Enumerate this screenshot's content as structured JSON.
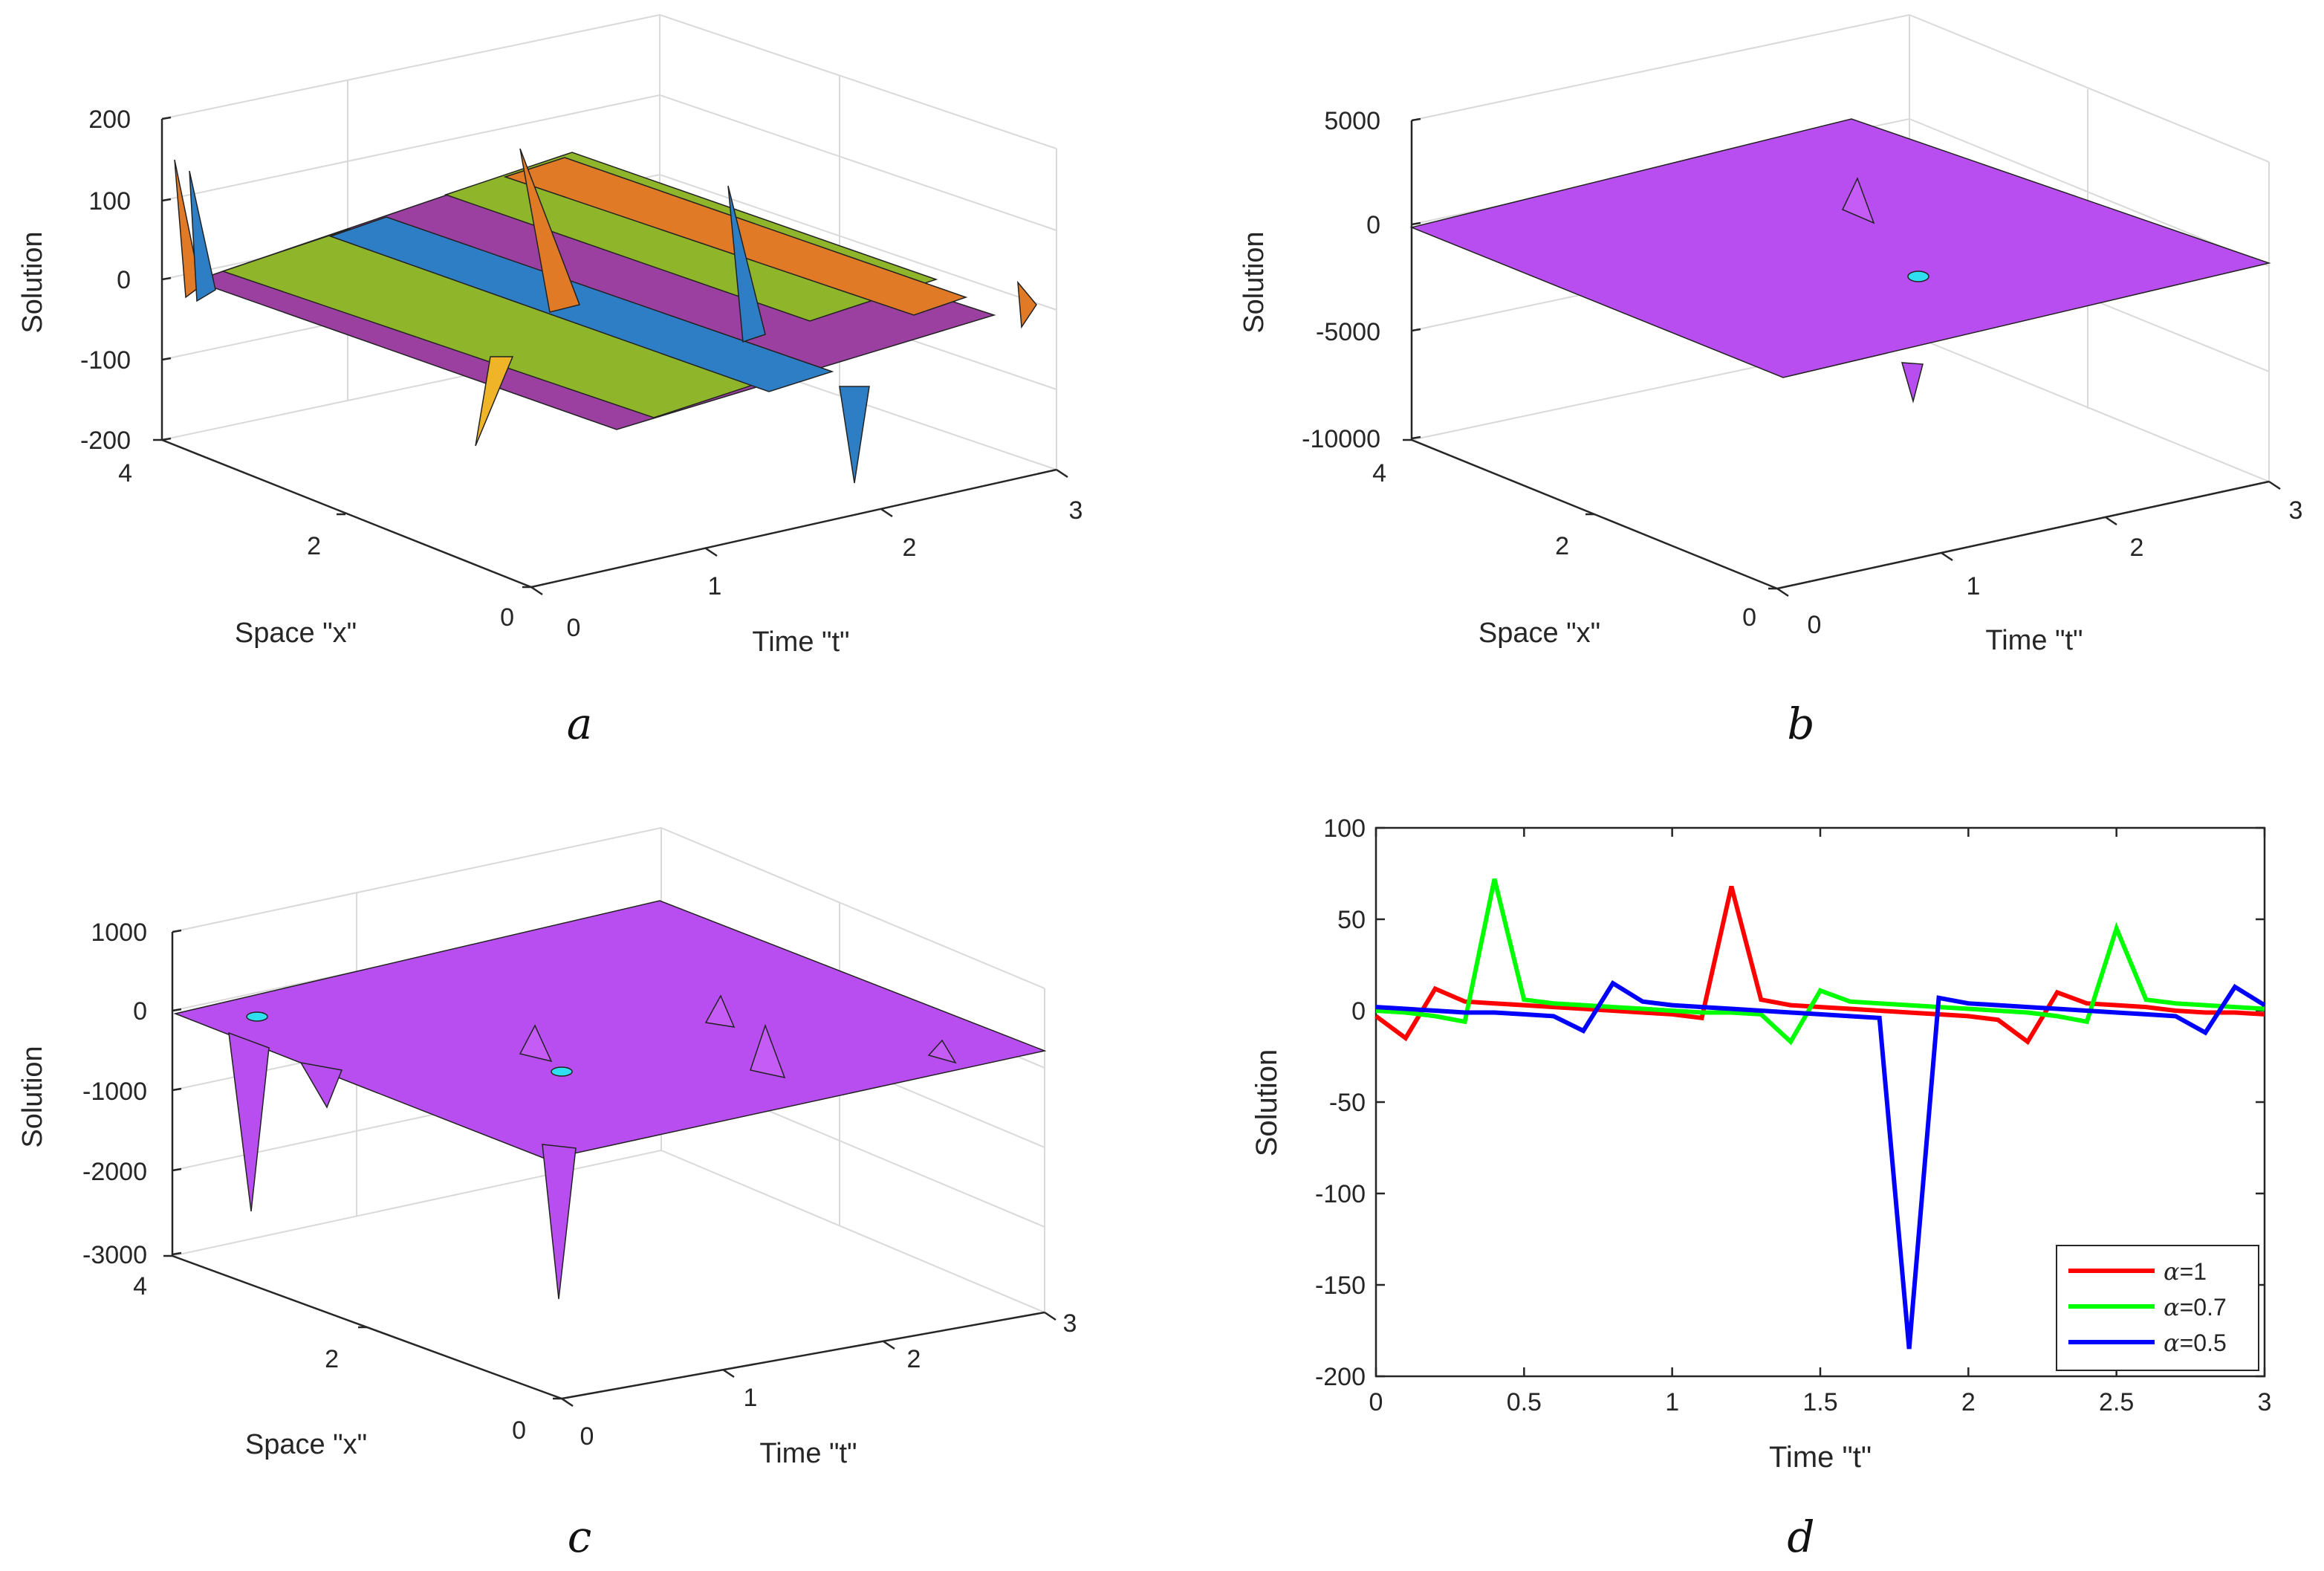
{
  "figure": {
    "panel_labels": [
      "a",
      "b",
      "c",
      "d"
    ]
  },
  "chart_data": [
    {
      "panel": "a",
      "type": "surface",
      "zlabel": "Solution",
      "xlabel": "Space \"x\"",
      "ylabel": "Time \"t\"",
      "zticks": [
        "200",
        "100",
        "0",
        "-100",
        "-200"
      ],
      "xticks": [
        "4",
        "2",
        "0"
      ],
      "yticks": [
        "0",
        "1",
        "2",
        "3"
      ],
      "zlim": [
        -200,
        200
      ],
      "xlim": [
        0,
        4
      ],
      "tlim": [
        0,
        3
      ],
      "colors": {
        "purple": "#9b3fa0",
        "green": "#8fb52a",
        "orange": "#e07a26",
        "blue": "#2d7ec4",
        "yellow": "#f0b429"
      }
    },
    {
      "panel": "b",
      "type": "surface",
      "zlabel": "Solution",
      "xlabel": "Space \"x\"",
      "ylabel": "Time \"t\"",
      "zticks": [
        "5000",
        "0",
        "-5000",
        "-10000"
      ],
      "xticks": [
        "4",
        "2",
        "0"
      ],
      "yticks": [
        "0",
        "1",
        "2",
        "3"
      ],
      "zlim": [
        -10000,
        5000
      ],
      "color": "#b84ef0"
    },
    {
      "panel": "c",
      "type": "surface",
      "zlabel": "Solution",
      "xlabel": "Space \"x\"",
      "ylabel": "Time \"t\"",
      "zticks": [
        "1000",
        "0",
        "-1000",
        "-2000",
        "-3000"
      ],
      "xticks": [
        "4",
        "2",
        "0"
      ],
      "yticks": [
        "0",
        "1",
        "2",
        "3"
      ],
      "zlim": [
        -3000,
        1000
      ],
      "color": "#b84ef0"
    },
    {
      "panel": "d",
      "type": "line",
      "xlabel": "Time \"t\"",
      "ylabel": "Solution",
      "xlim": [
        0,
        3
      ],
      "ylim": [
        -200,
        100
      ],
      "xticks": [
        "0",
        "0.5",
        "1",
        "1.5",
        "2",
        "2.5",
        "3"
      ],
      "yticks": [
        "100",
        "50",
        "0",
        "-50",
        "-100",
        "-150",
        "-200"
      ],
      "x": [
        0,
        0.1,
        0.2,
        0.3,
        0.4,
        0.5,
        0.6,
        0.7,
        0.8,
        0.9,
        1.0,
        1.1,
        1.2,
        1.3,
        1.4,
        1.5,
        1.6,
        1.7,
        1.8,
        1.9,
        2.0,
        2.1,
        2.2,
        2.3,
        2.4,
        2.5,
        2.6,
        2.7,
        2.8,
        2.9,
        3.0
      ],
      "series": [
        {
          "name": "α=1",
          "legend_symbol": "α",
          "legend_text": "=1",
          "color": "#ff0000",
          "values": [
            -3,
            -15,
            12,
            5,
            4,
            3,
            2,
            1,
            0,
            -1,
            -2,
            -4,
            68,
            6,
            3,
            2,
            1,
            0,
            -1,
            -2,
            -3,
            -5,
            -17,
            10,
            4,
            3,
            2,
            0,
            -1,
            -1,
            -2
          ]
        },
        {
          "name": "α=0.7",
          "legend_symbol": "α",
          "legend_text": "=0.7",
          "color": "#00ff00",
          "values": [
            0,
            -1,
            -3,
            -6,
            72,
            6,
            4,
            3,
            2,
            1,
            0,
            -1,
            -1,
            -2,
            -17,
            11,
            5,
            4,
            3,
            2,
            1,
            0,
            -1,
            -3,
            -6,
            45,
            6,
            4,
            3,
            2,
            1
          ]
        },
        {
          "name": "α=0.5",
          "legend_symbol": "α",
          "legend_text": "=0.5",
          "color": "#0000ff",
          "values": [
            2,
            1,
            0,
            -1,
            -1,
            -2,
            -3,
            -11,
            15,
            5,
            3,
            2,
            1,
            0,
            -1,
            -2,
            -3,
            -4,
            -185,
            7,
            4,
            3,
            2,
            1,
            0,
            -1,
            -2,
            -3,
            -12,
            13,
            3
          ]
        }
      ],
      "legend_position": "bottom-right"
    }
  ]
}
